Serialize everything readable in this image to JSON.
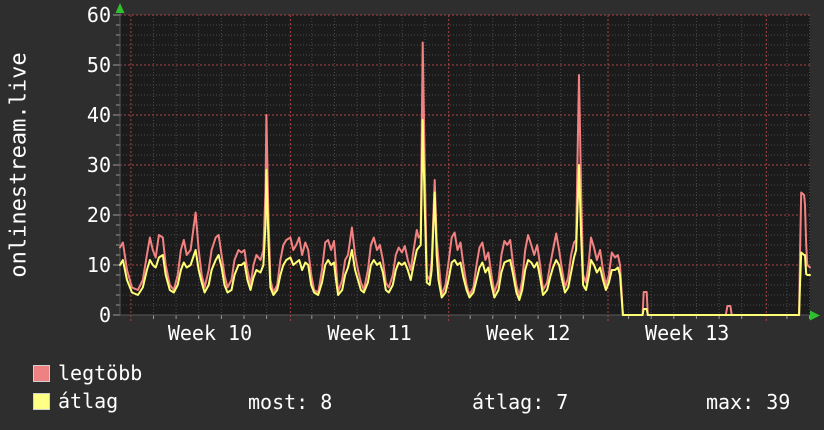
{
  "colors": {
    "page_bg": "#2e2e2e",
    "plot_bg": "#1b1b1b",
    "grid_minor": "#4a4a4a",
    "grid_major": "#a84444",
    "axis": "#9a9a9a",
    "arrow": "#2fbf2f",
    "text": "#ffffff"
  },
  "legend": {
    "items": [
      {
        "label": "legtöbb",
        "color": "#ee8181"
      },
      {
        "label": "átlag",
        "color": "#ffff85"
      }
    ],
    "stats": [
      {
        "text": "most: 8"
      },
      {
        "text": "átlag: 7"
      },
      {
        "text": "max: 39"
      }
    ]
  },
  "chart_data": {
    "type": "line",
    "title": "onlinestream.live",
    "xlabel": "",
    "ylabel": "",
    "x_unit": "days (monthly window, Week 10 - Week 13)",
    "grid": true,
    "legend_position": "bottom",
    "ylim": [
      0,
      60
    ],
    "y_ticks": [
      0,
      10,
      20,
      30,
      40,
      50,
      60
    ],
    "y_major_step": 10,
    "y_minor_step": 2,
    "summary": {
      "most": 8,
      "atlag": 7,
      "max": 39
    },
    "x_axis": {
      "end_day": 30.5,
      "day_lines_start": 0.48,
      "day_lines_end": 30.48,
      "week_line_days": [
        0.48,
        7.53,
        14.53,
        21.57,
        28.57
      ],
      "labels": [
        {
          "text": "Week 10",
          "center_day": 3.98
        },
        {
          "text": "Week 11",
          "center_day": 11.03
        },
        {
          "text": "Week 12",
          "center_day": 18.05
        },
        {
          "text": "Week 13",
          "center_day": 25.07
        }
      ]
    },
    "x": [
      0.0,
      0.13,
      0.31,
      0.53,
      0.79,
      1.01,
      1.19,
      1.32,
      1.45,
      1.58,
      1.72,
      1.89,
      2.02,
      2.2,
      2.38,
      2.55,
      2.69,
      2.82,
      2.95,
      3.12,
      3.34,
      3.48,
      3.61,
      3.74,
      3.92,
      4.05,
      4.23,
      4.36,
      4.49,
      4.62,
      4.75,
      4.93,
      5.06,
      5.24,
      5.37,
      5.5,
      5.63,
      5.77,
      5.9,
      6.03,
      6.21,
      6.34,
      6.43,
      6.47,
      6.56,
      6.65,
      6.78,
      6.95,
      7.09,
      7.22,
      7.35,
      7.53,
      7.66,
      7.79,
      7.92,
      8.05,
      8.19,
      8.32,
      8.45,
      8.58,
      8.76,
      8.93,
      9.07,
      9.2,
      9.33,
      9.46,
      9.55,
      9.64,
      9.82,
      9.95,
      10.08,
      10.25,
      10.39,
      10.52,
      10.65,
      10.78,
      10.96,
      11.09,
      11.22,
      11.36,
      11.49,
      11.62,
      11.75,
      11.88,
      12.06,
      12.19,
      12.32,
      12.46,
      12.59,
      12.72,
      12.85,
      12.98,
      13.12,
      13.2,
      13.29,
      13.38,
      13.47,
      13.56,
      13.69,
      13.78,
      13.91,
      14.0,
      14.08,
      14.22,
      14.39,
      14.52,
      14.66,
      14.79,
      14.92,
      15.05,
      15.18,
      15.32,
      15.45,
      15.62,
      15.76,
      15.89,
      16.02,
      16.15,
      16.28,
      16.42,
      16.55,
      16.73,
      16.86,
      16.99,
      17.12,
      17.25,
      17.38,
      17.52,
      17.65,
      17.78,
      17.91,
      18.04,
      18.18,
      18.31,
      18.44,
      18.57,
      18.7,
      18.88,
      19.01,
      19.14,
      19.28,
      19.41,
      19.54,
      19.67,
      19.81,
      19.94,
      20.07,
      20.16,
      20.29,
      20.38,
      20.47,
      20.6,
      20.73,
      20.82,
      20.95,
      21.08,
      21.22,
      21.35,
      21.48,
      21.61,
      21.74,
      21.88,
      22.01,
      22.1,
      22.18,
      22.23,
      22.6,
      23.1,
      23.15,
      23.28,
      23.33,
      23.9,
      25.0,
      26.0,
      26.78,
      26.85,
      26.98,
      27.04,
      28.0,
      29.0,
      30.02,
      30.06,
      30.11,
      30.24,
      30.28,
      30.33,
      30.38,
      30.5
    ],
    "series": [
      {
        "name": "legtöbb",
        "color": "#f28181",
        "values": [
          13.5,
          14.5,
          9,
          5.5,
          5,
          7,
          12,
          15.5,
          13,
          11.5,
          16,
          15.5,
          10,
          6,
          5,
          8,
          13,
          15,
          12,
          13,
          20.5,
          13,
          8,
          5.5,
          9,
          13,
          15.5,
          16,
          12,
          8,
          5.5,
          7,
          11,
          13,
          12.5,
          13,
          9,
          6,
          10,
          12,
          11,
          13,
          25,
          40,
          20,
          7,
          4.5,
          6,
          11,
          14,
          15,
          15.5,
          13,
          14,
          15.5,
          12,
          14.5,
          13,
          8,
          5,
          4.5,
          9,
          14.5,
          15,
          13,
          14.8,
          10,
          4.5,
          7,
          11,
          12,
          17.5,
          12,
          9,
          6.5,
          5,
          9,
          14,
          15.5,
          13,
          14,
          11,
          6.5,
          5.5,
          8,
          12,
          13.5,
          12.5,
          13.8,
          11,
          9,
          13,
          17,
          15.5,
          16,
          54.5,
          30,
          8,
          7,
          11,
          27,
          15,
          11,
          4,
          6,
          10.5,
          15.5,
          16.5,
          13,
          14.5,
          10,
          6,
          4,
          5.5,
          10,
          13.5,
          14.5,
          11,
          12.5,
          8,
          4.5,
          7,
          12,
          14.8,
          14,
          15,
          10,
          6,
          3.8,
          7,
          13,
          16,
          14,
          12,
          14,
          10,
          5,
          6.5,
          10,
          13,
          16.3,
          13,
          9,
          5.5,
          7.5,
          12,
          14.5,
          15,
          48,
          25,
          8,
          6.5,
          11,
          15.5,
          13.5,
          11,
          13,
          9,
          6,
          8,
          12.5,
          11.5,
          12,
          10,
          4,
          0,
          0,
          0,
          4.6,
          4.6,
          0,
          0,
          0,
          0,
          0,
          1.8,
          1.8,
          0,
          0,
          0,
          0,
          12,
          24.5,
          24,
          22,
          14,
          10,
          9.5
        ]
      },
      {
        "name": "átlag",
        "color": "#ffff75",
        "values": [
          10,
          11,
          7,
          4.5,
          4,
          5.5,
          9,
          11,
          10,
          9.5,
          11.5,
          12,
          8,
          5,
          4.5,
          6,
          9,
          10.5,
          9.5,
          10,
          13,
          9,
          6.5,
          4.5,
          6,
          9,
          11,
          12,
          9.5,
          6,
          4.5,
          5,
          8,
          10,
          10,
          10.5,
          7,
          5,
          7.5,
          9,
          8.5,
          10,
          18,
          29,
          15,
          5.5,
          4,
          5,
          8,
          10,
          11,
          11.5,
          10,
          10.5,
          11,
          9,
          10.5,
          10,
          6,
          4.5,
          4,
          6.5,
          10,
          11,
          10,
          10.5,
          7,
          4,
          5,
          8,
          9.5,
          13,
          9,
          7,
          5,
          4.5,
          6.5,
          10,
          11,
          10,
          10.5,
          8.5,
          5,
          4.5,
          6,
          9,
          10.5,
          10,
          10.5,
          9,
          7,
          10,
          13,
          13.5,
          14,
          39,
          22,
          6.5,
          6,
          9,
          24.5,
          12,
          7,
          3.5,
          4.5,
          7,
          10.5,
          11,
          10,
          10.5,
          7.5,
          5,
          3.5,
          4.5,
          7,
          9.5,
          10.5,
          8.5,
          9.5,
          6,
          3.5,
          5,
          8.5,
          10.5,
          10.8,
          11,
          8,
          4.5,
          3,
          5,
          9,
          11,
          10.5,
          9.5,
          10.5,
          7.5,
          4,
          5,
          7.5,
          9.5,
          11,
          10,
          7,
          4.5,
          5.5,
          8.5,
          11.5,
          13,
          30,
          16,
          6,
          5,
          8,
          11,
          10,
          8.5,
          9.5,
          7,
          5,
          6.5,
          9,
          9,
          9.5,
          8,
          3,
          0,
          0,
          0,
          1.2,
          1.2,
          0,
          0,
          0,
          0,
          0,
          0,
          0,
          0,
          0,
          0,
          0,
          6,
          12.5,
          12,
          12,
          8.2,
          8,
          8
        ]
      }
    ]
  }
}
